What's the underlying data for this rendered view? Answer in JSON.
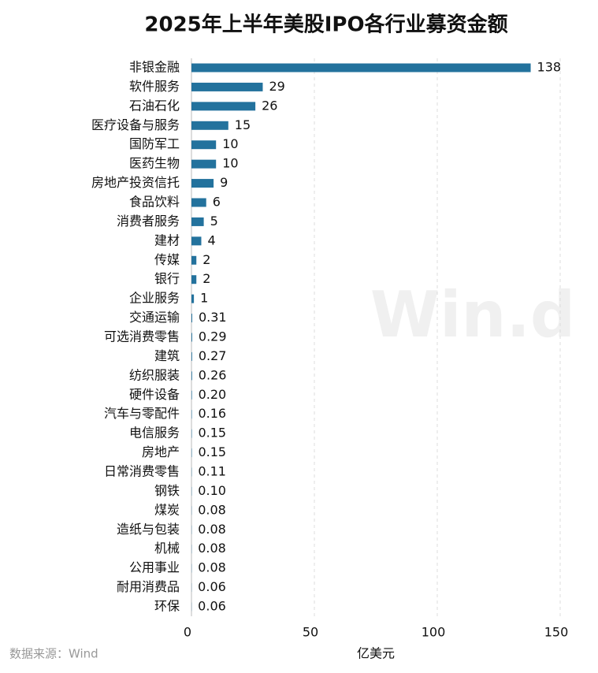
{
  "chart_data": {
    "type": "barh",
    "title": "2025年上半年美股IPO各行业募资金额",
    "categories": [
      "非银金融",
      "软件服务",
      "石油石化",
      "医疗设备与服务",
      "国防军工",
      "医药生物",
      "房地产投资信托",
      "食品饮料",
      "消费者服务",
      "建材",
      "传媒",
      "银行",
      "企业服务",
      "交通运输",
      "可选消费零售",
      "建筑",
      "纺织服装",
      "硬件设备",
      "汽车与零配件",
      "电信服务",
      "房地产",
      "日常消费零售",
      "钢铁",
      "煤炭",
      "造纸与包装",
      "机械",
      "公用事业",
      "耐用消费品",
      "环保"
    ],
    "values": [
      138,
      29,
      26,
      15,
      10,
      10,
      9,
      6,
      5,
      4,
      2,
      2,
      1,
      0.31,
      0.29,
      0.27,
      0.26,
      0.2,
      0.16,
      0.15,
      0.15,
      0.11,
      0.1,
      0.08,
      0.08,
      0.08,
      0.08,
      0.06,
      0.06
    ],
    "value_labels": [
      "138",
      "29",
      "26",
      "15",
      "10",
      "10",
      "9",
      "6",
      "5",
      "4",
      "2",
      "2",
      "1",
      "0.31",
      "0.29",
      "0.27",
      "0.26",
      "0.20",
      "0.16",
      "0.15",
      "0.15",
      "0.11",
      "0.10",
      "0.08",
      "0.08",
      "0.08",
      "0.08",
      "0.06",
      "0.06"
    ],
    "color": "#23729d",
    "xlim": [
      0,
      150
    ],
    "xticks": [
      0,
      50,
      100,
      150
    ],
    "grid": true,
    "xlabel": "亿美元",
    "source": "数据来源：Wind",
    "watermark": "Win.d"
  }
}
